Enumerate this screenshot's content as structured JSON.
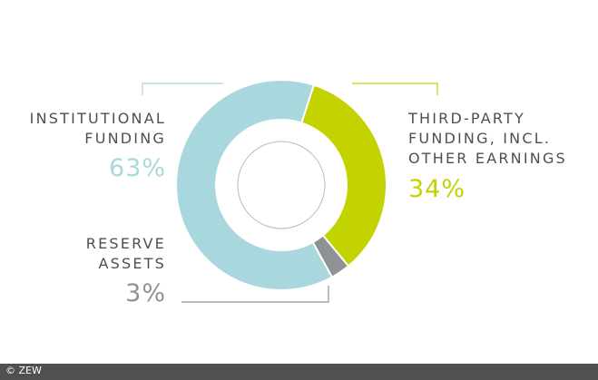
{
  "chart_data": {
    "type": "pie",
    "subtype": "donut",
    "slices": [
      {
        "label": "INSTITUTIONAL FUNDING",
        "value": 63,
        "value_label": "63%",
        "color": "#a8d7dd"
      },
      {
        "label": "THIRD-PARTY FUNDING, INCL. OTHER EARNINGS",
        "value": 34,
        "value_label": "34%",
        "color": "#c2d300"
      },
      {
        "label": "RESERVE ASSETS",
        "value": 3,
        "value_label": "3%",
        "color": "#8e9294"
      }
    ]
  },
  "labels": {
    "institutional": {
      "line1": "INSTITUTIONAL",
      "line2": "FUNDING",
      "pct": "63%"
    },
    "thirdparty": {
      "line1": "THIRD-PARTY",
      "line2": "FUNDING, INCL.",
      "line3": "OTHER EARNINGS",
      "pct": "34%"
    },
    "reserve": {
      "line1": "RESERVE",
      "line2": "ASSETS",
      "pct": "3%"
    }
  },
  "credit": "© ZEW",
  "colors": {
    "institutional": "#a8d7dd",
    "thirdparty": "#c2d300",
    "reserve": "#8e9294",
    "label_text": "#4e5050"
  }
}
